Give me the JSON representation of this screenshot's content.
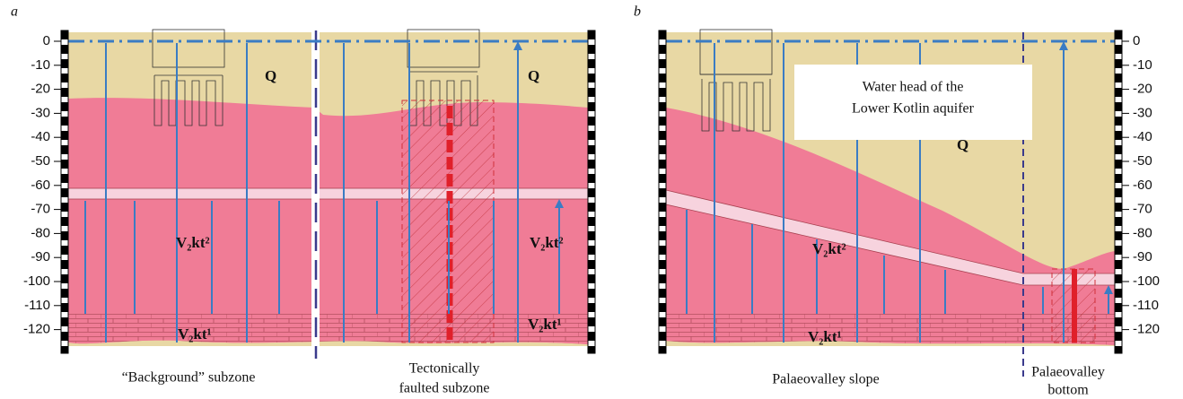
{
  "panels": [
    {
      "label": "a",
      "depth_ticks": [
        0,
        -10,
        -20,
        -30,
        -40,
        -50,
        -60,
        -70,
        -80,
        -90,
        -100,
        -110,
        -120
      ],
      "layers": [
        "Q",
        "Q",
        "V₂kt²",
        "V₂kt²",
        "V₂kt¹",
        "V₂kt¹"
      ],
      "captions": [
        [
          "“Background” subzone"
        ],
        [
          "Tectonically",
          "faulted subzone"
        ]
      ]
    },
    {
      "label": "b",
      "depth_ticks": [
        0,
        -10,
        -20,
        -30,
        -40,
        -50,
        -60,
        -70,
        -80,
        -90,
        -100,
        -110,
        -120
      ],
      "layers": [
        "Q",
        "V₂kt²",
        "V₂kt¹"
      ],
      "annotation": [
        "Water head of the",
        "Lower Kotlin aquifer"
      ],
      "captions": [
        [
          "Palaeovalley slope"
        ],
        [
          "Palaeovalley",
          "bottom"
        ]
      ]
    }
  ]
}
